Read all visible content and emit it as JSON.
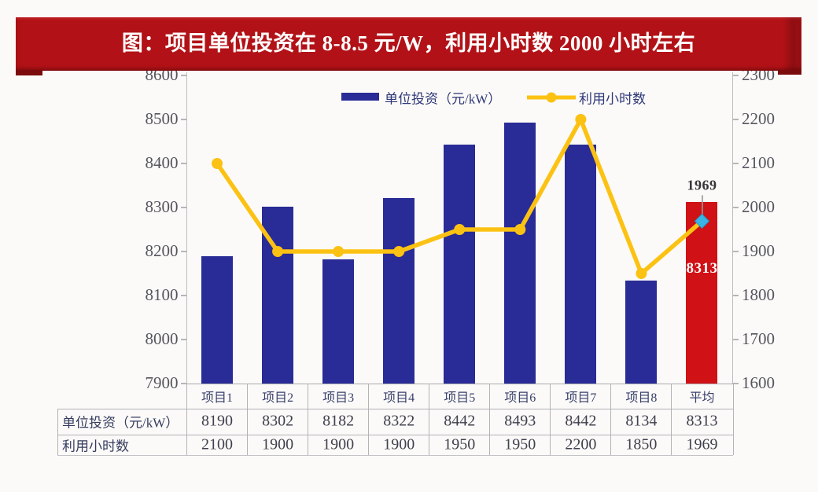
{
  "title": {
    "text": "图：项目单位投资在 8-8.5 元/W，利用小时数 2000 小时左右",
    "background_color": "#b21217",
    "text_color": "#ffffff"
  },
  "legend": {
    "items": [
      {
        "label": "单位投资（元/kW）",
        "marker": "bar-swatch",
        "color": "#292b96"
      },
      {
        "label": "利用小时数",
        "marker": "line-with-dot",
        "color": "#fcc213"
      }
    ]
  },
  "chart_data": {
    "type": "bar",
    "title": "图：项目单位投资在 8-8.5 元/W，利用小时数 2000 小时左右",
    "categories": [
      "项目1",
      "项目2",
      "项目3",
      "项目4",
      "项目5",
      "项目6",
      "项目7",
      "项目8",
      "平均"
    ],
    "series": [
      {
        "name": "单位投资（元/kW）",
        "type": "bar",
        "axis": "left",
        "values": [
          8190,
          8302,
          8182,
          8322,
          8442,
          8493,
          8442,
          8134,
          8313
        ],
        "color": "#292b96",
        "highlight_last_color": "#d01115"
      },
      {
        "name": "利用小时数",
        "type": "line",
        "axis": "right",
        "values": [
          2100,
          1900,
          1900,
          1900,
          1950,
          1950,
          2200,
          1850,
          1969
        ],
        "color": "#fcc213",
        "last_marker": "diamond",
        "last_marker_color": "#38b5e6"
      }
    ],
    "left_axis": {
      "min": 7900,
      "max": 8600,
      "step": 100
    },
    "right_axis": {
      "min": 1600,
      "max": 2300,
      "step": 100
    },
    "grid": false,
    "legend_position": "top",
    "annotations": [
      {
        "text": "1969",
        "target": "line-last-point",
        "placement": "above"
      },
      {
        "text": "8313",
        "target": "bar-last",
        "placement": "inside"
      }
    ]
  },
  "table": {
    "row_labels": [
      "单位投资（元/kW）",
      "利用小时数"
    ],
    "rows": [
      [
        "8190",
        "8302",
        "8182",
        "8322",
        "8442",
        "8493",
        "8442",
        "8134",
        "8313"
      ],
      [
        "2100",
        "1900",
        "1900",
        "1900",
        "1950",
        "1950",
        "2200",
        "1850",
        "1969"
      ]
    ]
  },
  "colors": {
    "page_background": "#fbfaf8",
    "bar": "#292b96",
    "bar_average": "#d01115",
    "line": "#fcc213",
    "diamond_marker": "#38b5e6",
    "axis_text": "#55555f",
    "table_border": "#b3b3b7",
    "annotation_text": "#35353a"
  }
}
